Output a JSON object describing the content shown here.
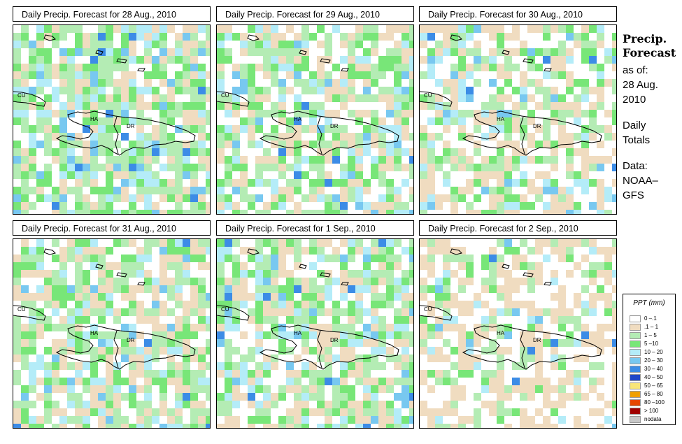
{
  "panels": [
    {
      "title": "Daily Precip. Forecast for  28 Aug., 2010",
      "seed": 11,
      "bias": 0.62
    },
    {
      "title": "Daily Precip. Forecast for  29 Aug., 2010",
      "seed": 23,
      "bias": 0.5
    },
    {
      "title": "Daily Precip. Forecast for  30 Aug., 2010",
      "seed": 37,
      "bias": 0.4
    },
    {
      "title": "Daily Precip. Forecast for  31 Aug., 2010",
      "seed": 41,
      "bias": 0.55
    },
    {
      "title": "Daily Precip. Forecast for  1 Sep., 2010",
      "seed": 53,
      "bias": 0.52
    },
    {
      "title": "Daily Precip. Forecast for  2 Sep., 2010",
      "seed": 67,
      "bias": 0.22
    }
  ],
  "map_labels": {
    "cu": "CU",
    "ha": "HA",
    "dr": "DR"
  },
  "side": {
    "line1": "Precip.",
    "line2": "Forecast",
    "asof": "as of:",
    "date1": "28 Aug.",
    "date2": "2010",
    "daily1": "Daily",
    "daily2": "Totals",
    "data1": "Data:",
    "data2": "NOAA–",
    "data3": "GFS"
  },
  "legend": {
    "title": "PPT (mm)",
    "items": [
      {
        "label": "0 –.1",
        "color": "#ffffff"
      },
      {
        "label": ".1 – 1",
        "color": "#f0dcc0"
      },
      {
        "label": "1 – 5",
        "color": "#b4ecb4"
      },
      {
        "label": "5 –10",
        "color": "#78e678"
      },
      {
        "label": "10 – 20",
        "color": "#b4ecf8"
      },
      {
        "label": "20 – 30",
        "color": "#78c8f0"
      },
      {
        "label": "30 – 40",
        "color": "#3c8ce6"
      },
      {
        "label": "40 – 50",
        "color": "#1e46c8"
      },
      {
        "label": "50 – 65",
        "color": "#f8e678"
      },
      {
        "label": "65 – 80",
        "color": "#f0a000"
      },
      {
        "label": "80 –100",
        "color": "#e64600"
      },
      {
        "label": "> 100",
        "color": "#a00000"
      },
      {
        "label": "nodata",
        "color": "#c8c8c8"
      }
    ]
  }
}
